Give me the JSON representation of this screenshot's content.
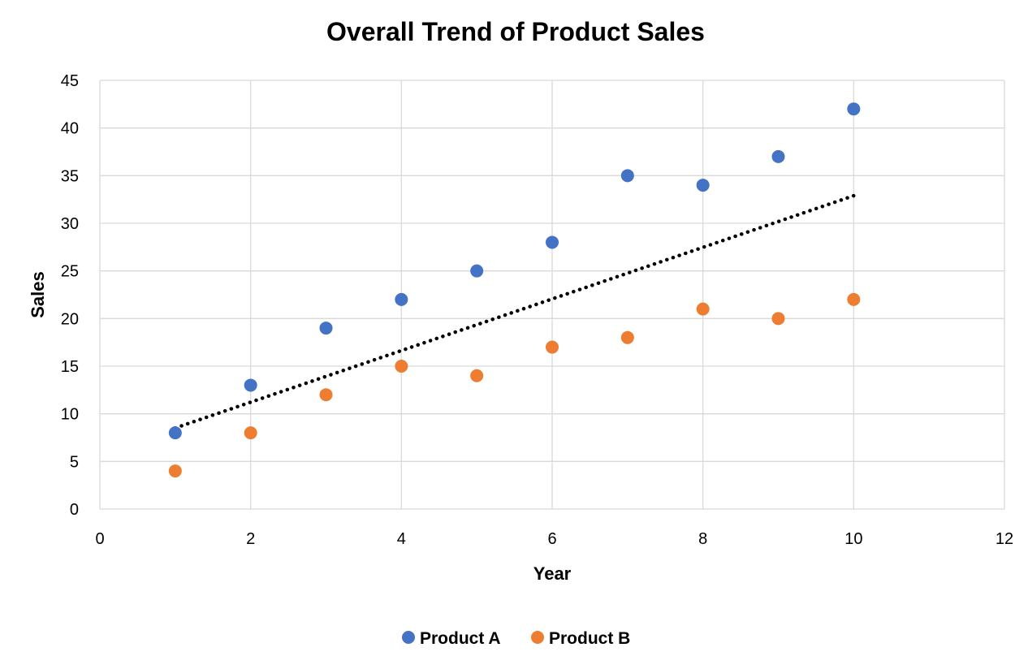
{
  "chart_data": {
    "type": "scatter",
    "title": "Overall Trend of Product Sales",
    "xlabel": "Year",
    "ylabel": "Sales",
    "xlim": [
      0,
      12
    ],
    "ylim": [
      0,
      45
    ],
    "xticks": [
      0,
      2,
      4,
      6,
      8,
      10,
      12
    ],
    "yticks": [
      0,
      5,
      10,
      15,
      20,
      25,
      30,
      35,
      40,
      45
    ],
    "grid": true,
    "legend_position": "bottom",
    "series": [
      {
        "name": "Product A",
        "color": "#4472C4",
        "x": [
          1,
          2,
          3,
          4,
          5,
          6,
          7,
          8,
          9,
          10
        ],
        "y": [
          8,
          13,
          19,
          22,
          25,
          28,
          35,
          34,
          37,
          42
        ]
      },
      {
        "name": "Product B",
        "color": "#ED7D31",
        "x": [
          1,
          2,
          3,
          4,
          5,
          6,
          7,
          8,
          9,
          10
        ],
        "y": [
          4,
          8,
          12,
          15,
          14,
          17,
          18,
          21,
          20,
          22
        ]
      }
    ],
    "trendline": {
      "type": "linear",
      "style": "dotted",
      "color": "#000000",
      "x_range": [
        1,
        10
      ]
    }
  }
}
